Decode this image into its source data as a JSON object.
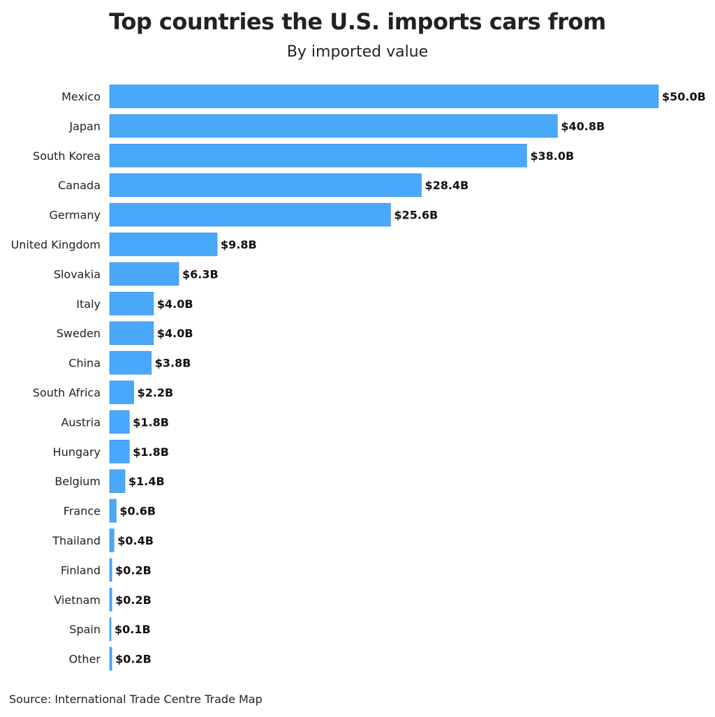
{
  "chart_data": {
    "type": "bar",
    "orientation": "horizontal",
    "title": "Top countries the U.S. imports cars from",
    "subtitle": "By imported value",
    "source": "Source: International Trade Centre Trade Map",
    "categories": [
      "Mexico",
      "Japan",
      "South Korea",
      "Canada",
      "Germany",
      "United Kingdom",
      "Slovakia",
      "Italy",
      "Sweden",
      "China",
      "South Africa",
      "Austria",
      "Hungary",
      "Belgium",
      "France",
      "Thailand",
      "Finland",
      "Vietnam",
      "Spain",
      "Other"
    ],
    "values": [
      50.0,
      40.8,
      38.0,
      28.4,
      25.6,
      9.8,
      6.3,
      4.0,
      4.0,
      3.8,
      2.2,
      1.8,
      1.8,
      1.4,
      0.6,
      0.4,
      0.2,
      0.2,
      0.1,
      0.2
    ],
    "value_labels": [
      "$50.0B",
      "$40.8B",
      "$38.0B",
      "$28.4B",
      "$25.6B",
      "$9.8B",
      "$6.3B",
      "$4.0B",
      "$4.0B",
      "$3.8B",
      "$2.2B",
      "$1.8B",
      "$1.8B",
      "$1.4B",
      "$0.6B",
      "$0.4B",
      "$0.2B",
      "$0.2B",
      "$0.1B",
      "$0.2B"
    ],
    "xlim": [
      0,
      50
    ],
    "grid": false,
    "legend": "none",
    "bar_color": "#4aa8fb"
  }
}
